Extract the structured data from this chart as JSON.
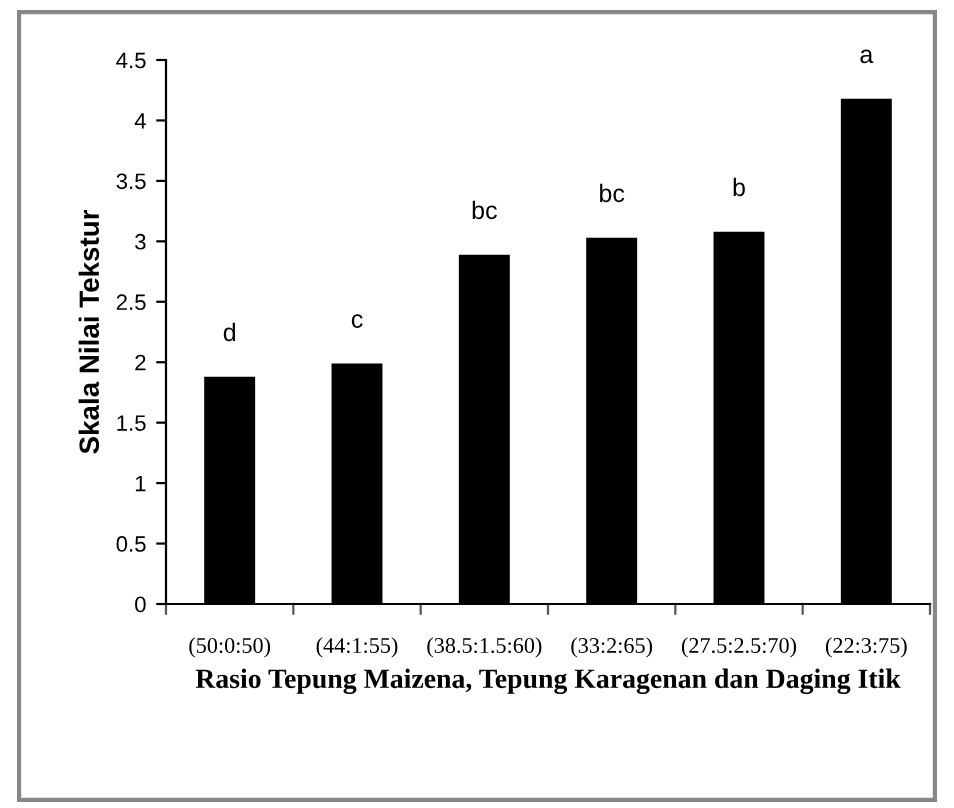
{
  "chart_data": {
    "type": "bar",
    "xlabel": "Rasio Tepung Maizena, Tepung Karagenan dan Daging Itik",
    "ylabel": "Skala Nilai Tekstur",
    "categories": [
      "(50:0:50)",
      "(44:1:55)",
      "(38.5:1.5:60)",
      "(33:2:65)",
      "(27.5:2.5:70)",
      "(22:3:75)"
    ],
    "values": [
      1.88,
      1.99,
      2.89,
      3.03,
      3.08,
      4.18
    ],
    "color": "#000000",
    "ylim": [
      0,
      4.5
    ],
    "yticks": [
      0,
      0.5,
      1,
      1.5,
      2,
      2.5,
      3,
      3.5,
      4,
      4.5
    ],
    "grid": false,
    "annotations": [
      {
        "text": "d",
        "x": "(50:0:50)",
        "y": 1.88
      },
      {
        "text": "c",
        "x": "(44:1:55)",
        "y": 1.99
      },
      {
        "text": "bc",
        "x": "(38.5:1.5:60)",
        "y": 2.89
      },
      {
        "text": "bc",
        "x": "(33:2:65)",
        "y": 3.03
      },
      {
        "text": "b",
        "x": "(27.5:2.5:70)",
        "y": 3.08
      },
      {
        "text": "a",
        "x": "(22:3:75)",
        "y": 4.18
      }
    ]
  }
}
